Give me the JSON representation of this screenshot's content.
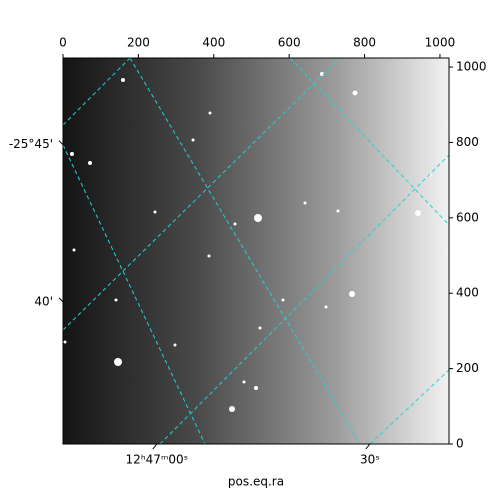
{
  "chart_data": {
    "type": "image",
    "xlabel": "pos.eq.ra",
    "xlim": [
      0,
      1024
    ],
    "ylim": [
      0,
      1024
    ],
    "xticks": [
      0,
      200,
      400,
      600,
      800,
      1000
    ],
    "yticks": [
      0,
      200,
      400,
      600,
      800,
      1000
    ],
    "ra_ticks": [
      {
        "value": 249,
        "label": "12ʰ47ᵐ00ˢ"
      },
      {
        "value": 814,
        "label": "30ˢ"
      }
    ],
    "dec_ticks": [
      {
        "value": 794,
        "label": "-25°45'"
      },
      {
        "value": 377,
        "label": "40'"
      }
    ],
    "grid": true,
    "grid_color": "#22d3d3"
  }
}
